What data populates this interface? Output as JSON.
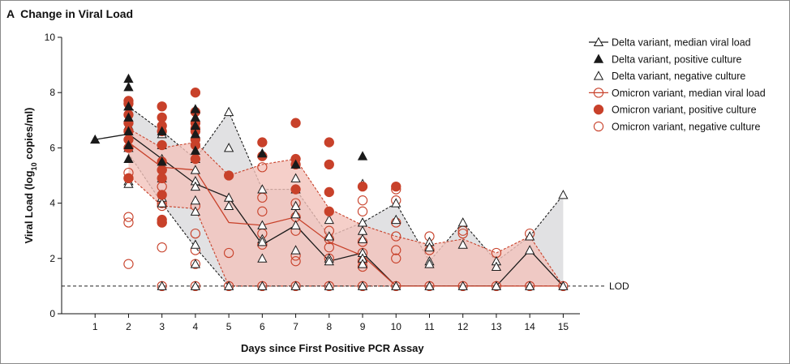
{
  "panel": {
    "letter": "A",
    "title": "Change in Viral Load"
  },
  "colors": {
    "delta": "#1a1a1a",
    "omicron": "#c8412a",
    "delta_band": "#d9dadc",
    "omicron_band": "#f2c3bc"
  },
  "chart_data": {
    "type": "scatter",
    "xlabel": "Days since First Positive PCR Assay",
    "ylabel": "Viral Load (log10 copies/ml)",
    "ylabel_parts": {
      "pre": "Viral Load (log",
      "sub": "10",
      "post": " copies/ml)"
    },
    "x_ticks": [
      1,
      2,
      3,
      4,
      5,
      6,
      7,
      8,
      9,
      10,
      11,
      12,
      13,
      14,
      15
    ],
    "y_ticks": [
      0,
      2,
      4,
      6,
      8,
      10
    ],
    "xlim": [
      0,
      15.5
    ],
    "ylim": [
      0,
      10
    ],
    "lod": {
      "value": 1,
      "label": "LOD"
    },
    "legend": [
      {
        "key": "delta_median",
        "label": "Delta variant, median viral load"
      },
      {
        "key": "delta_pos",
        "label": "Delta variant, positive culture"
      },
      {
        "key": "delta_neg",
        "label": "Delta variant, negative culture"
      },
      {
        "key": "omicron_median",
        "label": "Omicron variant, median viral load"
      },
      {
        "key": "omicron_pos",
        "label": "Omicron variant, positive culture"
      },
      {
        "key": "omicron_neg",
        "label": "Omicron variant, negative culture"
      }
    ],
    "delta_median": {
      "x": [
        1,
        2,
        3,
        4,
        5,
        6,
        7,
        8,
        9,
        10,
        11,
        12,
        13,
        14,
        15
      ],
      "y": [
        6.3,
        6.5,
        5.6,
        4.7,
        4.2,
        2.5,
        3.2,
        1.9,
        2.2,
        1.0,
        1.0,
        1.0,
        1.0,
        2.3,
        1.0
      ]
    },
    "delta_band": {
      "x": [
        2,
        3,
        4,
        5,
        6,
        7,
        8,
        9,
        10,
        11,
        12,
        13,
        14,
        15
      ],
      "upper": [
        7.5,
        6.6,
        5.6,
        7.3,
        4.5,
        4.5,
        2.8,
        3.3,
        4.0,
        1.9,
        3.3,
        1.9,
        2.8,
        4.3
      ],
      "lower": [
        5.8,
        4.0,
        2.4,
        1.0,
        1.0,
        1.0,
        1.0,
        1.0,
        1.0,
        1.0,
        1.0,
        1.0,
        1.0,
        1.0
      ]
    },
    "omicron_median": {
      "x": [
        2,
        3,
        4,
        5,
        6,
        7,
        8,
        9,
        10,
        11,
        12,
        13,
        14,
        15
      ],
      "y": [
        6.2,
        5.3,
        5.2,
        3.3,
        3.2,
        3.5,
        2.6,
        2.1,
        1.0,
        1.0,
        1.0,
        1.0,
        1.0,
        1.0
      ]
    },
    "omicron_band": {
      "x": [
        2,
        3,
        4,
        5,
        6,
        7,
        8,
        9,
        10,
        11,
        12,
        13,
        14,
        15
      ],
      "upper": [
        6.7,
        6.0,
        6.2,
        5.0,
        5.4,
        5.6,
        3.8,
        3.2,
        2.8,
        2.5,
        2.7,
        2.2,
        2.8,
        1.0
      ],
      "lower": [
        5.0,
        3.9,
        3.8,
        1.0,
        1.0,
        1.0,
        1.0,
        1.0,
        1.0,
        1.0,
        1.0,
        1.0,
        1.0,
        1.0
      ]
    },
    "delta_pos": [
      {
        "x": 1,
        "y": 6.3
      },
      {
        "x": 2,
        "y": 8.5
      },
      {
        "x": 2,
        "y": 8.2
      },
      {
        "x": 2,
        "y": 7.5
      },
      {
        "x": 2,
        "y": 7.1
      },
      {
        "x": 2,
        "y": 6.6
      },
      {
        "x": 2,
        "y": 6.1
      },
      {
        "x": 2,
        "y": 5.6
      },
      {
        "x": 3,
        "y": 6.6
      },
      {
        "x": 3,
        "y": 5.5
      },
      {
        "x": 4,
        "y": 7.4
      },
      {
        "x": 4,
        "y": 7.1
      },
      {
        "x": 4,
        "y": 6.8
      },
      {
        "x": 4,
        "y": 6.5
      },
      {
        "x": 4,
        "y": 5.9
      },
      {
        "x": 6,
        "y": 5.8
      },
      {
        "x": 7,
        "y": 5.4
      },
      {
        "x": 9,
        "y": 5.7
      }
    ],
    "delta_neg": [
      {
        "x": 2,
        "y": 7.5
      },
      {
        "x": 2,
        "y": 6.8
      },
      {
        "x": 2,
        "y": 6.0
      },
      {
        "x": 2,
        "y": 4.8
      },
      {
        "x": 2,
        "y": 4.7
      },
      {
        "x": 3,
        "y": 6.5
      },
      {
        "x": 3,
        "y": 6.1
      },
      {
        "x": 3,
        "y": 5.6
      },
      {
        "x": 3,
        "y": 4.9
      },
      {
        "x": 3,
        "y": 4.2
      },
      {
        "x": 3,
        "y": 4.0
      },
      {
        "x": 3,
        "y": 1.0
      },
      {
        "x": 4,
        "y": 5.6
      },
      {
        "x": 4,
        "y": 5.2
      },
      {
        "x": 4,
        "y": 4.8
      },
      {
        "x": 4,
        "y": 4.6
      },
      {
        "x": 4,
        "y": 4.1
      },
      {
        "x": 4,
        "y": 3.7
      },
      {
        "x": 4,
        "y": 2.5
      },
      {
        "x": 4,
        "y": 1.8
      },
      {
        "x": 4,
        "y": 1.0
      },
      {
        "x": 5,
        "y": 7.3
      },
      {
        "x": 5,
        "y": 6.0
      },
      {
        "x": 5,
        "y": 4.2
      },
      {
        "x": 5,
        "y": 3.9
      },
      {
        "x": 5,
        "y": 1.0
      },
      {
        "x": 6,
        "y": 4.5
      },
      {
        "x": 6,
        "y": 3.2
      },
      {
        "x": 6,
        "y": 2.7
      },
      {
        "x": 6,
        "y": 2.6
      },
      {
        "x": 6,
        "y": 2.0
      },
      {
        "x": 6,
        "y": 1.0
      },
      {
        "x": 7,
        "y": 4.9
      },
      {
        "x": 7,
        "y": 4.5
      },
      {
        "x": 7,
        "y": 3.9
      },
      {
        "x": 7,
        "y": 3.6
      },
      {
        "x": 7,
        "y": 3.2
      },
      {
        "x": 7,
        "y": 2.3
      },
      {
        "x": 7,
        "y": 1.0
      },
      {
        "x": 8,
        "y": 3.4
      },
      {
        "x": 8,
        "y": 2.8
      },
      {
        "x": 8,
        "y": 2.0
      },
      {
        "x": 8,
        "y": 1.9
      },
      {
        "x": 8,
        "y": 1.0
      },
      {
        "x": 9,
        "y": 4.7
      },
      {
        "x": 9,
        "y": 3.3
      },
      {
        "x": 9,
        "y": 3.0
      },
      {
        "x": 9,
        "y": 2.7
      },
      {
        "x": 9,
        "y": 2.2
      },
      {
        "x": 9,
        "y": 2.0
      },
      {
        "x": 9,
        "y": 1.8
      },
      {
        "x": 9,
        "y": 1.0
      },
      {
        "x": 10,
        "y": 4.0
      },
      {
        "x": 10,
        "y": 3.4
      },
      {
        "x": 10,
        "y": 1.0
      },
      {
        "x": 11,
        "y": 2.6
      },
      {
        "x": 11,
        "y": 2.4
      },
      {
        "x": 11,
        "y": 1.9
      },
      {
        "x": 11,
        "y": 1.8
      },
      {
        "x": 11,
        "y": 1.0
      },
      {
        "x": 12,
        "y": 3.3
      },
      {
        "x": 12,
        "y": 2.5
      },
      {
        "x": 12,
        "y": 1.0
      },
      {
        "x": 13,
        "y": 1.9
      },
      {
        "x": 13,
        "y": 1.7
      },
      {
        "x": 13,
        "y": 1.0
      },
      {
        "x": 14,
        "y": 2.8
      },
      {
        "x": 14,
        "y": 2.3
      },
      {
        "x": 14,
        "y": 1.0
      },
      {
        "x": 15,
        "y": 4.3
      },
      {
        "x": 15,
        "y": 1.0
      }
    ],
    "omicron_pos": [
      {
        "x": 2,
        "y": 7.7
      },
      {
        "x": 2,
        "y": 7.6
      },
      {
        "x": 2,
        "y": 7.2
      },
      {
        "x": 2,
        "y": 6.9
      },
      {
        "x": 2,
        "y": 6.6
      },
      {
        "x": 2,
        "y": 6.3
      },
      {
        "x": 2,
        "y": 6.0
      },
      {
        "x": 2,
        "y": 4.9
      },
      {
        "x": 3,
        "y": 7.5
      },
      {
        "x": 3,
        "y": 7.1
      },
      {
        "x": 3,
        "y": 6.8
      },
      {
        "x": 3,
        "y": 6.6
      },
      {
        "x": 3,
        "y": 6.1
      },
      {
        "x": 3,
        "y": 5.5
      },
      {
        "x": 3,
        "y": 5.2
      },
      {
        "x": 3,
        "y": 4.9
      },
      {
        "x": 3,
        "y": 4.3
      },
      {
        "x": 3,
        "y": 3.4
      },
      {
        "x": 3,
        "y": 3.3
      },
      {
        "x": 4,
        "y": 8.0
      },
      {
        "x": 4,
        "y": 7.3
      },
      {
        "x": 4,
        "y": 6.9
      },
      {
        "x": 4,
        "y": 6.7
      },
      {
        "x": 4,
        "y": 6.6
      },
      {
        "x": 4,
        "y": 6.3
      },
      {
        "x": 4,
        "y": 6.1
      },
      {
        "x": 4,
        "y": 5.6
      },
      {
        "x": 5,
        "y": 5.0
      },
      {
        "x": 6,
        "y": 6.2
      },
      {
        "x": 6,
        "y": 5.7
      },
      {
        "x": 7,
        "y": 6.9
      },
      {
        "x": 7,
        "y": 5.6
      },
      {
        "x": 7,
        "y": 5.4
      },
      {
        "x": 7,
        "y": 4.5
      },
      {
        "x": 8,
        "y": 6.2
      },
      {
        "x": 8,
        "y": 5.4
      },
      {
        "x": 8,
        "y": 4.4
      },
      {
        "x": 8,
        "y": 3.7
      },
      {
        "x": 9,
        "y": 4.6
      },
      {
        "x": 10,
        "y": 4.6
      }
    ],
    "omicron_neg": [
      {
        "x": 2,
        "y": 5.1
      },
      {
        "x": 2,
        "y": 4.9
      },
      {
        "x": 2,
        "y": 3.5
      },
      {
        "x": 2,
        "y": 3.3
      },
      {
        "x": 2,
        "y": 1.8
      },
      {
        "x": 3,
        "y": 5.2
      },
      {
        "x": 3,
        "y": 4.6
      },
      {
        "x": 3,
        "y": 4.0
      },
      {
        "x": 3,
        "y": 3.9
      },
      {
        "x": 3,
        "y": 3.3
      },
      {
        "x": 3,
        "y": 2.4
      },
      {
        "x": 3,
        "y": 1.0
      },
      {
        "x": 4,
        "y": 3.9
      },
      {
        "x": 4,
        "y": 2.9
      },
      {
        "x": 4,
        "y": 2.3
      },
      {
        "x": 4,
        "y": 1.8
      },
      {
        "x": 4,
        "y": 1.0
      },
      {
        "x": 5,
        "y": 2.2
      },
      {
        "x": 5,
        "y": 1.0
      },
      {
        "x": 6,
        "y": 5.3
      },
      {
        "x": 6,
        "y": 4.2
      },
      {
        "x": 6,
        "y": 3.7
      },
      {
        "x": 6,
        "y": 2.9
      },
      {
        "x": 6,
        "y": 2.5
      },
      {
        "x": 6,
        "y": 1.0
      },
      {
        "x": 7,
        "y": 4.0
      },
      {
        "x": 7,
        "y": 3.5
      },
      {
        "x": 7,
        "y": 3.0
      },
      {
        "x": 7,
        "y": 2.1
      },
      {
        "x": 7,
        "y": 1.9
      },
      {
        "x": 7,
        "y": 1.0
      },
      {
        "x": 8,
        "y": 3.0
      },
      {
        "x": 8,
        "y": 2.7
      },
      {
        "x": 8,
        "y": 2.4
      },
      {
        "x": 8,
        "y": 2.0
      },
      {
        "x": 8,
        "y": 1.0
      },
      {
        "x": 9,
        "y": 4.1
      },
      {
        "x": 9,
        "y": 3.7
      },
      {
        "x": 9,
        "y": 2.6
      },
      {
        "x": 9,
        "y": 2.2
      },
      {
        "x": 9,
        "y": 1.9
      },
      {
        "x": 9,
        "y": 1.7
      },
      {
        "x": 9,
        "y": 1.0
      },
      {
        "x": 10,
        "y": 4.5
      },
      {
        "x": 10,
        "y": 4.1
      },
      {
        "x": 10,
        "y": 3.3
      },
      {
        "x": 10,
        "y": 2.8
      },
      {
        "x": 10,
        "y": 2.3
      },
      {
        "x": 10,
        "y": 2.0
      },
      {
        "x": 10,
        "y": 1.0
      },
      {
        "x": 11,
        "y": 2.8
      },
      {
        "x": 11,
        "y": 2.3
      },
      {
        "x": 11,
        "y": 1.0
      },
      {
        "x": 12,
        "y": 3.0
      },
      {
        "x": 12,
        "y": 2.9
      },
      {
        "x": 12,
        "y": 1.0
      },
      {
        "x": 13,
        "y": 2.2
      },
      {
        "x": 13,
        "y": 1.0
      },
      {
        "x": 14,
        "y": 2.9
      },
      {
        "x": 14,
        "y": 1.0
      },
      {
        "x": 15,
        "y": 1.0
      }
    ]
  }
}
